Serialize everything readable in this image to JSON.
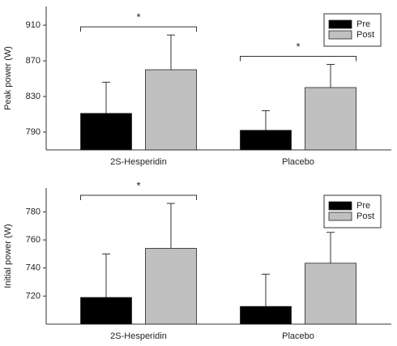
{
  "chart_data": [
    {
      "type": "bar",
      "ylabel": "Peak power (W)",
      "categories": [
        "2S-Hesperidin",
        "Placebo"
      ],
      "series": [
        {
          "name": "Pre",
          "color": "#000000",
          "values": [
            811,
            792
          ],
          "errors": [
            35,
            22
          ]
        },
        {
          "name": "Post",
          "color": "#c0c0c0",
          "values": [
            860,
            840
          ],
          "errors": [
            39,
            26
          ]
        }
      ],
      "ylim": [
        770,
        931
      ],
      "yticks": [
        790,
        830,
        870,
        910
      ],
      "legend": "upper right",
      "annotations": [
        {
          "text": "*",
          "category": "2S-Hesperidin"
        },
        {
          "text": "*",
          "category": "Placebo"
        }
      ]
    },
    {
      "type": "bar",
      "ylabel": "Initial power (W)",
      "categories": [
        "2S-Hesperidin",
        "Placebo"
      ],
      "series": [
        {
          "name": "Pre",
          "color": "#000000",
          "values": [
            719,
            712.6
          ],
          "errors": [
            31,
            23
          ]
        },
        {
          "name": "Post",
          "color": "#c0c0c0",
          "values": [
            754,
            743.4
          ],
          "errors": [
            32,
            22
          ]
        }
      ],
      "ylim": [
        700,
        797
      ],
      "yticks": [
        720,
        740,
        760,
        780
      ],
      "legend": "upper right",
      "annotations": [
        {
          "text": "*",
          "category": "2S-Hesperidin"
        }
      ]
    }
  ]
}
